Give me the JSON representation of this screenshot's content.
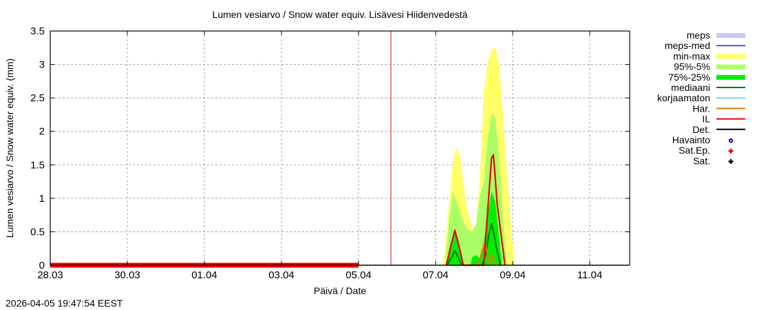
{
  "chart_data": {
    "type": "area",
    "title": "Lumen vesiarvo / Snow water equiv.  Lisävesi Hiidenvedestä",
    "xlabel": "Päivä / Date",
    "ylabel": "Lumen vesiarvo / Snow water equiv. (mm)",
    "ylim": [
      0,
      3.5
    ],
    "yticks": [
      "0",
      "0.5",
      "1",
      "1.5",
      "2",
      "2.5",
      "3",
      "3.5"
    ],
    "xticks": [
      "28.03",
      "30.03",
      "01.04",
      "03.04",
      "05.04",
      "07.04",
      "09.04",
      "11.04"
    ],
    "grid": true,
    "legend_position": "right",
    "timestamp": "2026-04-05 19:47:54 EEST",
    "forecast_start_marker": "05.04 ~20:00",
    "x_unit": "days since 28.03 00:00",
    "series": [
      {
        "name": "meps",
        "kind": "band",
        "color": "#c8c8ff",
        "points": []
      },
      {
        "name": "meps-med",
        "kind": "line",
        "color": "#5050d8",
        "points": []
      },
      {
        "name": "min-max",
        "kind": "band",
        "color": "#ffff66",
        "x": [
          10.2,
          10.35,
          10.45,
          10.55,
          10.65,
          10.8,
          10.95,
          11.05,
          11.15,
          11.25,
          11.35,
          11.45,
          11.55,
          11.65,
          11.75,
          11.9,
          12.0,
          12.05
        ],
        "upper": [
          0,
          0.9,
          1.55,
          1.78,
          1.55,
          0.9,
          0.55,
          0.6,
          1.3,
          2.6,
          3.0,
          3.22,
          3.25,
          3.0,
          2.2,
          1.0,
          0.3,
          0
        ]
      },
      {
        "name": "95%-5%",
        "kind": "band",
        "color": "#aaff66",
        "x": [
          10.25,
          10.35,
          10.45,
          10.55,
          10.65,
          10.8,
          10.95,
          11.05,
          11.15,
          11.25,
          11.35,
          11.45,
          11.55,
          11.65,
          11.75,
          11.85
        ],
        "upper": [
          0,
          0.7,
          1.1,
          0.95,
          0.75,
          0.55,
          0.5,
          0.6,
          1.05,
          1.25,
          1.9,
          2.27,
          2.2,
          1.6,
          0.7,
          0
        ]
      },
      {
        "name": "75%-25%",
        "kind": "band",
        "color": "#00ee00",
        "x": [
          10.3,
          10.4,
          10.5,
          10.6,
          10.7,
          10.9,
          10.95,
          11.05,
          11.15,
          11.25,
          11.35,
          11.45,
          11.55,
          11.65,
          11.72
        ],
        "upper": [
          0,
          0.3,
          0.55,
          0.35,
          0,
          0,
          0.12,
          0.15,
          0.1,
          0.35,
          0.75,
          1.1,
          0.95,
          0.4,
          0
        ]
      },
      {
        "name": "mediaani",
        "kind": "line",
        "color": "#007700",
        "x": [
          10.3,
          10.42,
          10.5,
          10.6,
          10.68,
          11.2,
          11.3,
          11.38,
          11.45,
          11.52,
          11.6,
          11.68
        ],
        "y": [
          0,
          0.12,
          0.22,
          0.1,
          0,
          0,
          0.15,
          0.45,
          0.62,
          0.45,
          0.2,
          0
        ]
      },
      {
        "name": "korjaamaton",
        "kind": "line",
        "color": "#88ccee",
        "points": []
      },
      {
        "name": "Har.",
        "kind": "line",
        "color": "#ee7700",
        "x": [
          11.1,
          11.2,
          11.28,
          11.35,
          11.42,
          11.48,
          11.52,
          11.58
        ],
        "y": [
          0,
          0.2,
          0.35,
          0.15,
          0.02,
          0.15,
          0.05,
          0
        ]
      },
      {
        "name": "IL",
        "kind": "line",
        "color": "#ee0000",
        "x": [
          10.28,
          10.4,
          10.5,
          10.6,
          10.72,
          11.25,
          11.35,
          11.45,
          11.5,
          11.6,
          11.7,
          11.8
        ],
        "y": [
          0,
          0.3,
          0.52,
          0.3,
          0,
          0,
          0.8,
          1.6,
          1.65,
          0.9,
          0.45,
          0
        ],
        "history_x": [
          0,
          8.0
        ],
        "history_y": [
          0,
          0
        ]
      },
      {
        "name": "Det.",
        "kind": "line",
        "color": "#000000",
        "x": [
          8.0,
          15.0
        ],
        "y": [
          0,
          0
        ]
      },
      {
        "name": "Havainto",
        "kind": "marker",
        "color": "#0000cc",
        "points": []
      },
      {
        "name": "Sat.Ep.",
        "kind": "marker",
        "color": "#ee0000",
        "points": []
      },
      {
        "name": "Sat.",
        "kind": "marker",
        "color": "#000000",
        "points": []
      }
    ]
  },
  "legend": [
    {
      "label": "meps",
      "swatch": "band",
      "color": "#c8c8ff"
    },
    {
      "label": "meps-med",
      "swatch": "line",
      "color": "#5050d8"
    },
    {
      "label": "min-max",
      "swatch": "band",
      "color": "#ffff66"
    },
    {
      "label": "95%-5%",
      "swatch": "band",
      "color": "#aaff66"
    },
    {
      "label": "75%-25%",
      "swatch": "band",
      "color": "#00ee00"
    },
    {
      "label": "mediaani",
      "swatch": "line",
      "color": "#007700"
    },
    {
      "label": "korjaamaton",
      "swatch": "line",
      "color": "#88ccee"
    },
    {
      "label": "Har.",
      "swatch": "line",
      "color": "#ee7700"
    },
    {
      "label": "IL",
      "swatch": "line",
      "color": "#ee0000"
    },
    {
      "label": "Det.",
      "swatch": "line",
      "color": "#000000"
    },
    {
      "label": "Havainto",
      "swatch": "circle",
      "color": "#0000cc"
    },
    {
      "label": "Sat.Ep.",
      "swatch": "plus",
      "color": "#ee0000"
    },
    {
      "label": "Sat.",
      "swatch": "plus",
      "color": "#000000"
    }
  ]
}
